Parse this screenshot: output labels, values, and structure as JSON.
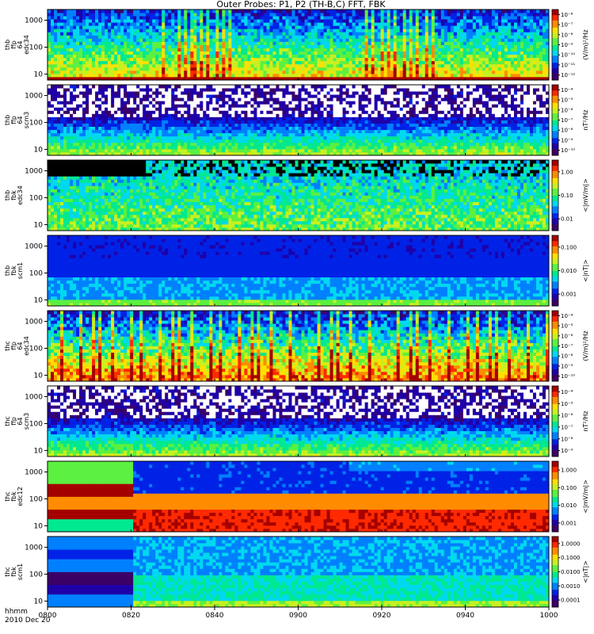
{
  "title": "Outer Probes: P1, P2 (TH-B,C) FFT, FBK",
  "time_axis": {
    "label_line1": "hhmm",
    "label_line2": "2010 Dec 20",
    "ticks": [
      "0800",
      "0820",
      "0840",
      "0900",
      "0920",
      "0940",
      "1000"
    ]
  },
  "colors": {
    "scale": [
      "#3b0066",
      "#1f00a8",
      "#0022e6",
      "#0080ff",
      "#00d8f0",
      "#00e890",
      "#5cf040",
      "#c8f020",
      "#ffe000",
      "#ff8c00",
      "#ff2a00",
      "#a40000"
    ]
  },
  "chart_data": [
    {
      "type": "heatmap",
      "panel_id": "thb-ffp-edc34",
      "ylabel": [
        "thb",
        "ffp",
        "64",
        "edc34"
      ],
      "yticks": [
        "10",
        "100",
        "1000"
      ],
      "ylog": true,
      "colorbar": {
        "unit": "(V/m)²/Hz",
        "ticks": [
          "10⁻¹²",
          "10⁻¹¹",
          "10⁻¹⁰",
          "10⁻⁹",
          "10⁻⁸",
          "10⁻⁷",
          "10⁻⁶"
        ]
      },
      "style": "spiky"
    },
    {
      "type": "heatmap",
      "panel_id": "thb-ffp-scm3",
      "ylabel": [
        "thb",
        "ffp",
        "64",
        "scm3"
      ],
      "yticks": [
        "10",
        "100",
        "1000"
      ],
      "ylog": true,
      "colorbar": {
        "unit": "nT²/Hz",
        "ticks": [
          "10⁻¹⁰",
          "10⁻⁹",
          "10⁻⁸",
          "10⁻⁷",
          "10⁻⁶",
          "10⁻⁵",
          "10⁻⁴"
        ]
      },
      "style": "noisy"
    },
    {
      "type": "heatmap",
      "panel_id": "thb-fbk-edc34",
      "ylabel": [
        "thb",
        "fbk",
        "edc34"
      ],
      "yticks": [
        "10",
        "100",
        "1000"
      ],
      "ylog": true,
      "colorbar": {
        "unit": "<|mV/m|>",
        "ticks": [
          "0.01",
          "0.10",
          "1.00"
        ]
      },
      "style": "fbk-e-b"
    },
    {
      "type": "heatmap",
      "panel_id": "thb-fbk-scm1",
      "ylabel": [
        "thb",
        "fbk",
        "scm1"
      ],
      "yticks": [
        "10",
        "100",
        "1000"
      ],
      "ylog": true,
      "colorbar": {
        "unit": "<|nT|>",
        "ticks": [
          "0.001",
          "0.010",
          "0.100"
        ]
      },
      "style": "fbk-b-b"
    },
    {
      "type": "heatmap",
      "panel_id": "thc-ffp-edc34",
      "ylabel": [
        "thc",
        "ffp",
        "64",
        "edc34"
      ],
      "yticks": [
        "10",
        "100",
        "1000"
      ],
      "ylog": true,
      "colorbar": {
        "unit": "(V/m)²/Hz",
        "ticks": [
          "10⁻¹⁰",
          "10⁻⁹",
          "10⁻⁸",
          "10⁻⁷",
          "10⁻⁶",
          "10⁻⁵",
          "10⁻⁴"
        ]
      },
      "style": "spiky-c"
    },
    {
      "type": "heatmap",
      "panel_id": "thc-ffp-scm3",
      "ylabel": [
        "thc",
        "ffp",
        "64",
        "scm3"
      ],
      "yticks": [
        "10",
        "100",
        "1000"
      ],
      "ylog": true,
      "colorbar": {
        "unit": "nT²/Hz",
        "ticks": [
          "10⁻⁹",
          "10⁻⁸",
          "10⁻⁷",
          "10⁻⁶",
          "10⁻⁵",
          "10⁻⁴"
        ]
      },
      "style": "noisy"
    },
    {
      "type": "heatmap",
      "panel_id": "thc-fbk-edc12",
      "ylabel": [
        "thc",
        "fbk",
        "edc12"
      ],
      "yticks": [
        "10",
        "100",
        "1000"
      ],
      "ylog": true,
      "colorbar": {
        "unit": "<|mV/m|>",
        "ticks": [
          "0.001",
          "0.010",
          "0.100",
          "1.000"
        ]
      },
      "style": "fbk-e-c"
    },
    {
      "type": "heatmap",
      "panel_id": "thc-fbk-scm1",
      "ylabel": [
        "thc",
        "fbk",
        "scm1"
      ],
      "yticks": [
        "10",
        "100",
        "1000"
      ],
      "ylog": true,
      "colorbar": {
        "unit": "<|nT|>",
        "ticks": [
          "0.0001",
          "0.0010",
          "0.0100",
          "0.1000",
          "1.0000"
        ]
      },
      "style": "fbk-b-c"
    }
  ]
}
